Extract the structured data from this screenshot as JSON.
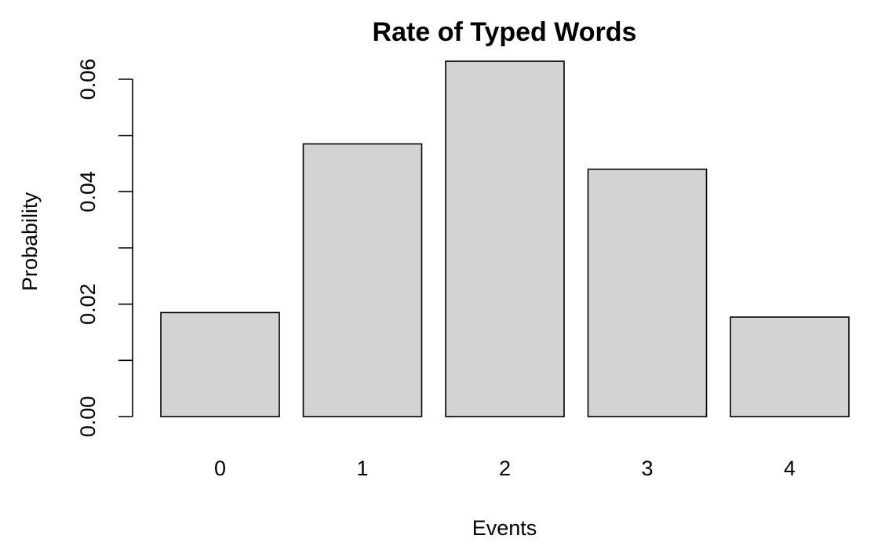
{
  "chart_data": {
    "type": "bar",
    "title": "Rate of Typed Words",
    "xlabel": "Events",
    "ylabel": "Probability",
    "categories": [
      "0",
      "1",
      "2",
      "3",
      "4"
    ],
    "values": [
      0.0185,
      0.0485,
      0.0632,
      0.044,
      0.0177
    ],
    "ylim": [
      0,
      0.0632
    ],
    "y_ticks": [
      0.0,
      0.01,
      0.02,
      0.03,
      0.04,
      0.05,
      0.06
    ],
    "y_tick_labels": [
      "0.00",
      "",
      "0.02",
      "",
      "0.04",
      "",
      "0.06"
    ],
    "grid": false,
    "legend": "none",
    "colors": {
      "bar_fill": "#d3d3d3",
      "bar_stroke": "#000000"
    }
  }
}
